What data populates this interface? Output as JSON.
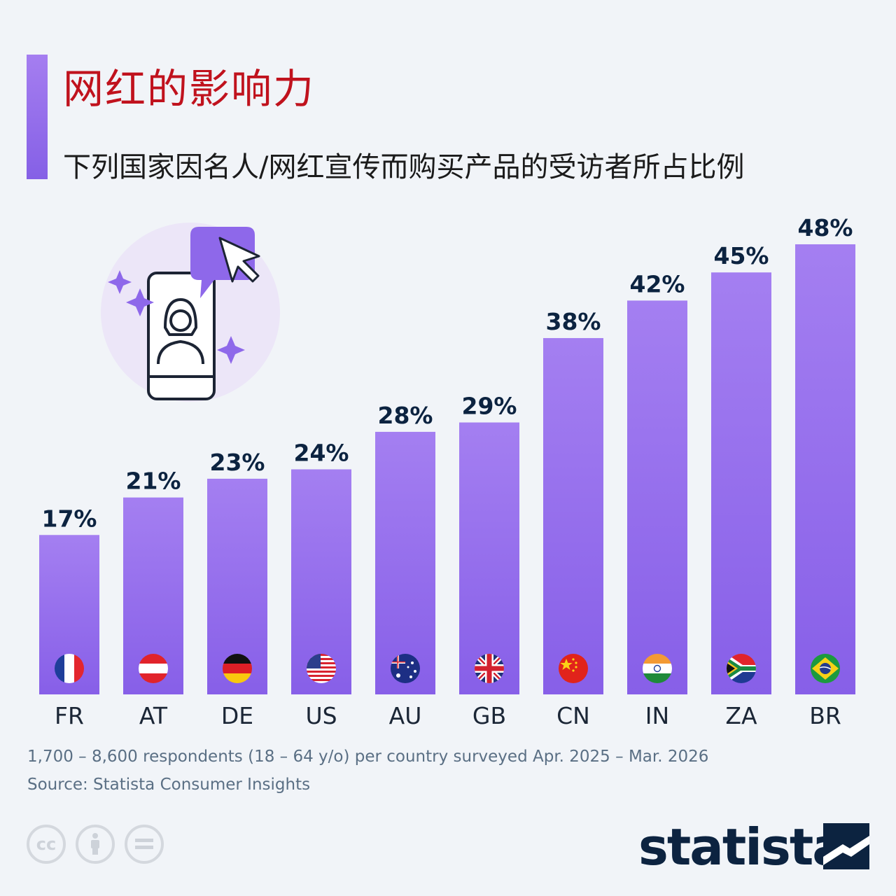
{
  "title": "网红的影响力",
  "subtitle": "下列国家因名人/网红宣传而购买产品的受访者所占比例",
  "chart_data": {
    "type": "bar",
    "categories": [
      "FR",
      "AT",
      "DE",
      "US",
      "AU",
      "GB",
      "CN",
      "IN",
      "ZA",
      "BR"
    ],
    "values": [
      17,
      21,
      23,
      24,
      28,
      29,
      38,
      42,
      45,
      48
    ],
    "data_labels": [
      "17%",
      "21%",
      "23%",
      "24%",
      "28%",
      "29%",
      "38%",
      "42%",
      "45%",
      "48%"
    ],
    "unit": "%",
    "ylim": [
      0,
      48
    ],
    "grid": false,
    "colors": {
      "bar_top": "#a47ff1",
      "bar_bottom": "#875fe8",
      "label": "#0c2340"
    }
  },
  "footnote_1": "1,700 – 8,600 respondents (18 – 64 y/o) per country surveyed Apr. 2025 – Mar. 2026",
  "footnote_2": "Source: Statista Consumer Insights",
  "brand": "statista",
  "license_icons": [
    "cc-icon",
    "attribution-icon",
    "no-derivatives-icon"
  ],
  "colors": {
    "title": "#c0121d",
    "accent": "#9670ec",
    "background": "#f1f4f8"
  }
}
